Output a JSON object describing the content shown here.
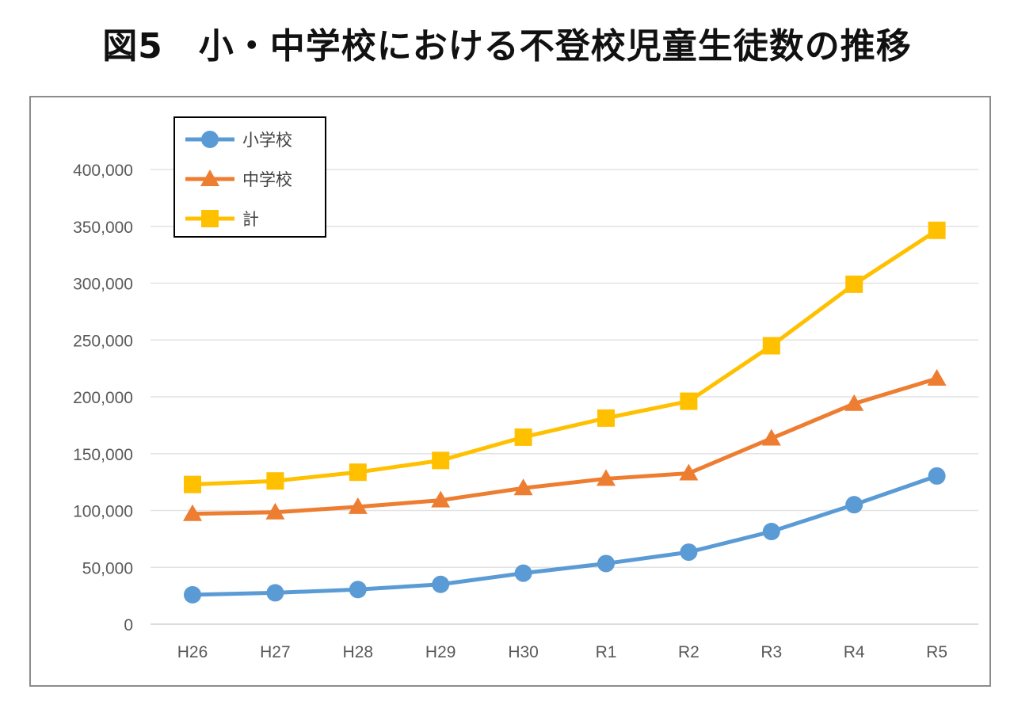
{
  "chart_data": {
    "type": "line",
    "title": "図5　小・中学校における不登校児童生徒数の推移",
    "xlabel": "",
    "ylabel": "",
    "categories": [
      "H26",
      "H27",
      "H28",
      "H29",
      "H30",
      "R1",
      "R2",
      "R3",
      "R4",
      "R5"
    ],
    "ylim": [
      0,
      400000
    ],
    "yticks": [
      0,
      50000,
      100000,
      150000,
      200000,
      250000,
      300000,
      350000,
      400000
    ],
    "ytick_labels": [
      "0",
      "50,000",
      "100,000",
      "150,000",
      "200,000",
      "250,000",
      "300,000",
      "350,000",
      "400,000"
    ],
    "grid": true,
    "legend_position": "top-left",
    "series": [
      {
        "name": "小学校",
        "color": "#5B9BD5",
        "marker": "circle",
        "values": [
          25864,
          27583,
          30448,
          35032,
          44841,
          53350,
          63350,
          81498,
          105112,
          130370
        ]
      },
      {
        "name": "中学校",
        "color": "#ED7D31",
        "marker": "triangle",
        "values": [
          97033,
          98408,
          103235,
          108999,
          119687,
          127922,
          132777,
          163442,
          193936,
          216112
        ]
      },
      {
        "name": "計",
        "color": "#FFC000",
        "marker": "square",
        "values": [
          122897,
          125991,
          133683,
          144031,
          164528,
          181272,
          196127,
          244940,
          299048,
          346482
        ]
      }
    ]
  }
}
